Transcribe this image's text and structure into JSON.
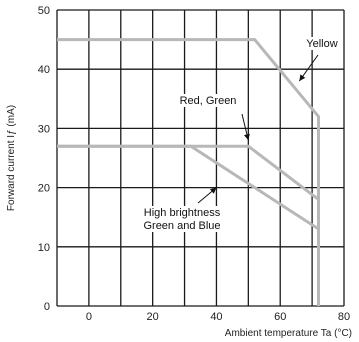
{
  "chart_data": {
    "type": "line",
    "xlabel": "Ambient temperature Ta (°C)",
    "ylabel": "Forward current Iƒ (mA)",
    "xlim": [
      -10,
      80
    ],
    "ylim": [
      0,
      50
    ],
    "xticks": [
      0,
      20,
      40,
      60,
      80
    ],
    "yticks": [
      0,
      10,
      20,
      30,
      40,
      50
    ],
    "x_grid_step": 10,
    "y_grid_step": 10,
    "grid": true,
    "legend": "none",
    "series": [
      {
        "points": [
          [
            -10,
            45
          ],
          [
            52,
            45
          ],
          [
            72,
            32
          ],
          [
            72,
            0
          ]
        ]
      },
      {
        "points": [
          [
            -10,
            27
          ],
          [
            50,
            27
          ],
          [
            72,
            18
          ]
        ]
      },
      {
        "points": [
          [
            -10,
            27
          ],
          [
            32,
            27
          ],
          [
            72,
            13
          ]
        ]
      }
    ],
    "annotations": [
      {
        "lines": [
          "Yellow"
        ],
        "target": [
          66,
          38
        ]
      },
      {
        "lines": [
          "Red, Green"
        ],
        "target": [
          50,
          28
        ]
      },
      {
        "lines": [
          "High brightness",
          "Green and Blue"
        ],
        "target": [
          40,
          20
        ]
      }
    ],
    "line_color": "#b8b8b8",
    "grid_color": "#1a1a1a"
  }
}
